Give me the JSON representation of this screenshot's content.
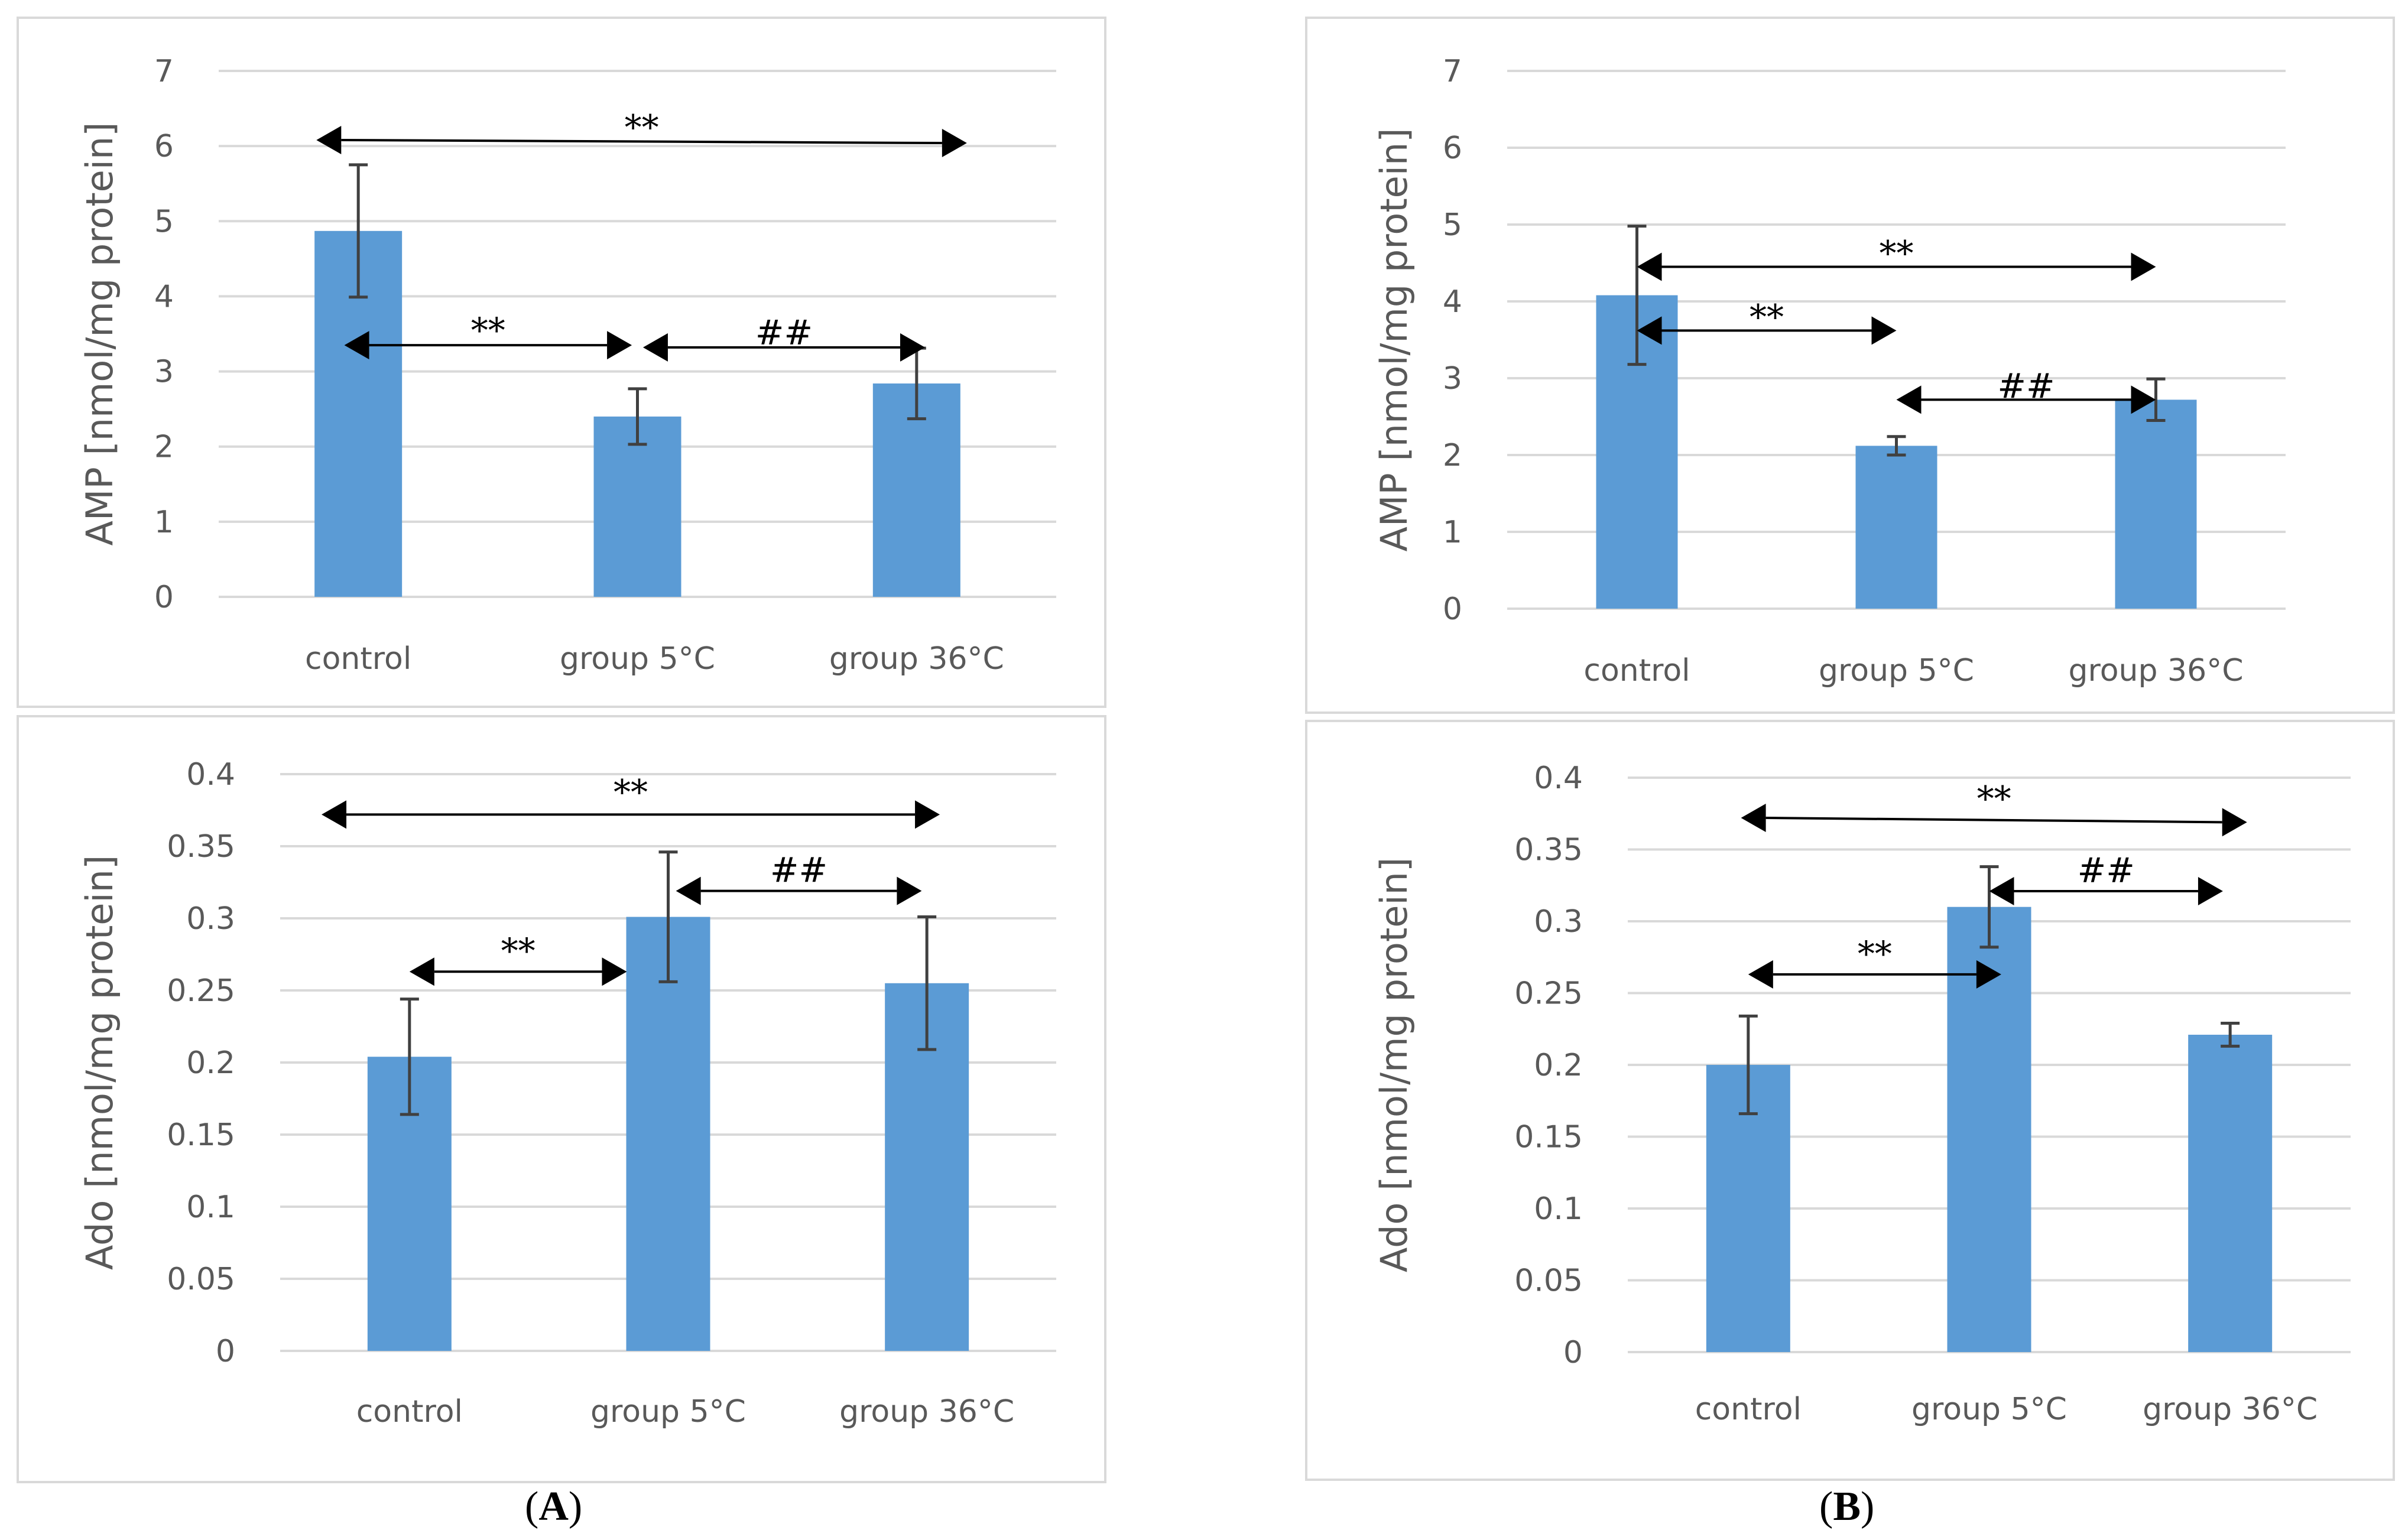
{
  "panel_labels": [
    {
      "open": "(",
      "letter": "A",
      "close": ")"
    },
    {
      "open": "(",
      "letter": "B",
      "close": ")"
    }
  ],
  "colors": {
    "bar": "#5b9bd5",
    "grid": "#d9d9d9",
    "text": "#595959",
    "error": "#404040",
    "annotation": "#000000"
  },
  "chart_data": [
    {
      "id": "A-AMP",
      "type": "bar",
      "ylabel": "AMP [nmol/mg protein]",
      "categories": [
        "control",
        "group 5°C",
        "group 36°C"
      ],
      "values": [
        4.87,
        2.4,
        2.84
      ],
      "errors": [
        0.88,
        0.37,
        0.47
      ],
      "ylim": [
        0,
        7
      ],
      "yticks": [
        0,
        1,
        2,
        3,
        4,
        5,
        6,
        7
      ],
      "ytick_labels": [
        "0",
        "1",
        "2",
        "3",
        "4",
        "5",
        "6",
        "7"
      ],
      "grid": true,
      "annotations": [
        {
          "text": "**",
          "from": -0.15,
          "to": 2.18,
          "y": 6.08,
          "y_end": 6.04,
          "label_y": 6.2
        },
        {
          "text": "**",
          "from": -0.05,
          "to": 0.98,
          "y": 3.35,
          "label_y": 3.5
        },
        {
          "text": "##",
          "from": 1.02,
          "to": 2.03,
          "y": 3.32,
          "label_y": 3.47
        }
      ]
    },
    {
      "id": "B-AMP",
      "type": "bar",
      "ylabel": "AMP [nmol/mg protein]",
      "categories": [
        "control",
        "group 5°C",
        "group 36°C"
      ],
      "values": [
        4.08,
        2.12,
        2.72
      ],
      "errors": [
        0.9,
        0.12,
        0.27
      ],
      "ylim": [
        0,
        7
      ],
      "yticks": [
        0,
        1,
        2,
        3,
        4,
        5,
        6,
        7
      ],
      "ytick_labels": [
        "0",
        "1",
        "2",
        "3",
        "4",
        "5",
        "6",
        "7"
      ],
      "grid": true,
      "annotations": [
        {
          "text": "**",
          "from": 0.0,
          "to": 2.0,
          "y": 4.45,
          "label_y": 4.58
        },
        {
          "text": "**",
          "from": 0.0,
          "to": 1.0,
          "y": 3.62,
          "label_y": 3.75
        },
        {
          "text": "##",
          "from": 1.0,
          "to": 2.0,
          "y": 2.72,
          "label_y": 2.85
        }
      ]
    },
    {
      "id": "A-Ado",
      "type": "bar",
      "ylabel": "Ado [nmol/mg protein]",
      "categories": [
        "control",
        "group 5°C",
        "group 36°C"
      ],
      "values": [
        0.204,
        0.301,
        0.255
      ],
      "errors": [
        0.04,
        0.045,
        0.046
      ],
      "ylim": [
        0,
        0.4
      ],
      "yticks": [
        0,
        0.05,
        0.1,
        0.15,
        0.2,
        0.25,
        0.3,
        0.35,
        0.4
      ],
      "ytick_labels": [
        "0",
        "0.05",
        "0.1",
        "0.15",
        "0.2",
        "0.25",
        "0.3",
        "0.35",
        "0.4"
      ],
      "grid": true,
      "annotations": [
        {
          "text": "**",
          "from": -0.34,
          "to": 2.05,
          "y": 0.372,
          "label_y": 0.385
        },
        {
          "text": "**",
          "from": 0.0,
          "to": 0.84,
          "y": 0.263,
          "label_y": 0.275
        },
        {
          "text": "##",
          "from": 1.03,
          "to": 1.98,
          "y": 0.319,
          "label_y": 0.331
        }
      ]
    },
    {
      "id": "B-Ado",
      "type": "bar",
      "ylabel": "Ado [nmol/mg protein]",
      "categories": [
        "control",
        "group 5°C",
        "group 36°C"
      ],
      "values": [
        0.2,
        0.31,
        0.221
      ],
      "errors": [
        0.034,
        0.028,
        0.008
      ],
      "ylim": [
        0,
        0.4
      ],
      "yticks": [
        0,
        0.05,
        0.1,
        0.15,
        0.2,
        0.25,
        0.3,
        0.35,
        0.4
      ],
      "ytick_labels": [
        "0",
        "0.05",
        "0.1",
        "0.15",
        "0.2",
        "0.25",
        "0.3",
        "0.35",
        "0.4"
      ],
      "grid": true,
      "annotations": [
        {
          "text": "**",
          "from": -0.03,
          "to": 2.07,
          "y": 0.372,
          "y_end": 0.369,
          "label_y": 0.383
        },
        {
          "text": "**",
          "from": 0.0,
          "to": 1.05,
          "y": 0.263,
          "label_y": 0.275
        },
        {
          "text": "##",
          "from": 1.0,
          "to": 1.97,
          "y": 0.321,
          "label_y": 0.333
        }
      ]
    }
  ]
}
